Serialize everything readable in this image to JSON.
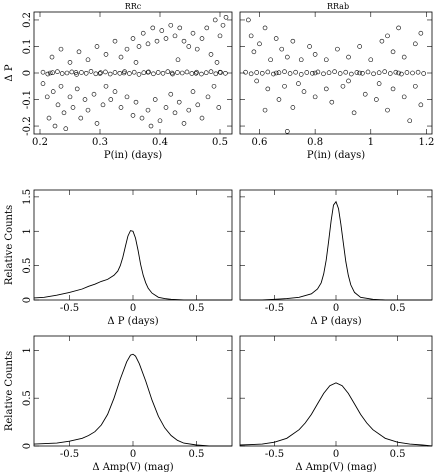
{
  "figure": {
    "panel_titles": [
      "RRc",
      "RRab"
    ]
  },
  "chart_data": [
    {
      "id": "rrc-scatter",
      "type": "scatter",
      "title": "RRc",
      "xlabel": "P(in)  (days)",
      "ylabel": "Δ P",
      "xlim": [
        0.19,
        0.52
      ],
      "ylim": [
        -0.23,
        0.23
      ],
      "xticks": [
        0.2,
        0.3,
        0.4,
        0.5
      ],
      "yticks": [
        -0.2,
        -0.1,
        0,
        0.1,
        0.2
      ],
      "grid": false,
      "points": [
        [
          0.205,
          0.003
        ],
        [
          0.213,
          -0.004
        ],
        [
          0.221,
          0.001
        ],
        [
          0.229,
          0.005
        ],
        [
          0.237,
          -0.002
        ],
        [
          0.245,
          0.0
        ],
        [
          0.253,
          0.004
        ],
        [
          0.261,
          -0.005
        ],
        [
          0.269,
          0.002
        ],
        [
          0.277,
          -0.001
        ],
        [
          0.285,
          0.006
        ],
        [
          0.293,
          -0.003
        ],
        [
          0.301,
          0.001
        ],
        [
          0.309,
          0.004
        ],
        [
          0.317,
          -0.004
        ],
        [
          0.325,
          0.002
        ],
        [
          0.333,
          -0.001
        ],
        [
          0.341,
          0.005
        ],
        [
          0.349,
          -0.002
        ],
        [
          0.357,
          0.003
        ],
        [
          0.365,
          -0.005
        ],
        [
          0.373,
          0.001
        ],
        [
          0.381,
          0.004
        ],
        [
          0.389,
          -0.003
        ],
        [
          0.397,
          0.002
        ],
        [
          0.405,
          -0.001
        ],
        [
          0.413,
          0.005
        ],
        [
          0.421,
          -0.004
        ],
        [
          0.429,
          0.002
        ],
        [
          0.437,
          0.0
        ],
        [
          0.445,
          0.004
        ],
        [
          0.453,
          -0.002
        ],
        [
          0.461,
          0.003
        ],
        [
          0.469,
          -0.004
        ],
        [
          0.477,
          0.001
        ],
        [
          0.485,
          0.005
        ],
        [
          0.493,
          -0.003
        ],
        [
          0.501,
          0.002
        ],
        [
          0.509,
          -0.001
        ],
        [
          0.217,
          0.0
        ],
        [
          0.26,
          0.002
        ],
        [
          0.3,
          -0.002
        ],
        [
          0.34,
          0.0
        ],
        [
          0.38,
          0.003
        ],
        [
          0.42,
          0.0
        ],
        [
          0.46,
          -0.001
        ],
        [
          0.5,
          0.003
        ],
        [
          0.205,
          -0.04
        ],
        [
          0.212,
          -0.09
        ],
        [
          0.215,
          -0.17
        ],
        [
          0.222,
          -0.07
        ],
        [
          0.225,
          -0.2
        ],
        [
          0.23,
          -0.12
        ],
        [
          0.235,
          -0.05
        ],
        [
          0.24,
          -0.15
        ],
        [
          0.243,
          -0.21
        ],
        [
          0.25,
          -0.09
        ],
        [
          0.255,
          -0.13
        ],
        [
          0.262,
          -0.06
        ],
        [
          0.268,
          -0.17
        ],
        [
          0.275,
          -0.1
        ],
        [
          0.28,
          -0.14
        ],
        [
          0.29,
          -0.08
        ],
        [
          0.295,
          -0.19
        ],
        [
          0.305,
          -0.12
        ],
        [
          0.31,
          -0.05
        ],
        [
          0.318,
          -0.1
        ],
        [
          0.325,
          -0.07
        ],
        [
          0.335,
          -0.13
        ],
        [
          0.345,
          -0.09
        ],
        [
          0.355,
          -0.16
        ],
        [
          0.36,
          -0.11
        ],
        [
          0.37,
          -0.17
        ],
        [
          0.38,
          -0.14
        ],
        [
          0.385,
          -0.2
        ],
        [
          0.392,
          -0.1
        ],
        [
          0.4,
          -0.18
        ],
        [
          0.41,
          -0.13
        ],
        [
          0.418,
          -0.08
        ],
        [
          0.425,
          -0.15
        ],
        [
          0.432,
          -0.11
        ],
        [
          0.44,
          -0.19
        ],
        [
          0.448,
          -0.14
        ],
        [
          0.455,
          -0.07
        ],
        [
          0.463,
          -0.12
        ],
        [
          0.47,
          -0.17
        ],
        [
          0.48,
          -0.09
        ],
        [
          0.49,
          -0.05
        ],
        [
          0.498,
          -0.13
        ],
        [
          0.22,
          0.06
        ],
        [
          0.235,
          0.09
        ],
        [
          0.25,
          0.04
        ],
        [
          0.265,
          0.08
        ],
        [
          0.28,
          0.05
        ],
        [
          0.295,
          0.1
        ],
        [
          0.31,
          0.07
        ],
        [
          0.325,
          0.12
        ],
        [
          0.335,
          0.06
        ],
        [
          0.345,
          0.09
        ],
        [
          0.355,
          0.13
        ],
        [
          0.365,
          0.1
        ],
        [
          0.372,
          0.15
        ],
        [
          0.38,
          0.11
        ],
        [
          0.388,
          0.17
        ],
        [
          0.395,
          0.12
        ],
        [
          0.403,
          0.16
        ],
        [
          0.41,
          0.13
        ],
        [
          0.418,
          0.18
        ],
        [
          0.425,
          0.14
        ],
        [
          0.433,
          0.17
        ],
        [
          0.44,
          0.12
        ],
        [
          0.448,
          0.1
        ],
        [
          0.455,
          0.15
        ],
        [
          0.462,
          0.09
        ],
        [
          0.47,
          0.13
        ],
        [
          0.478,
          0.17
        ],
        [
          0.485,
          0.07
        ],
        [
          0.492,
          0.2
        ],
        [
          0.5,
          0.14
        ],
        [
          0.505,
          0.18
        ],
        [
          0.51,
          0.21
        ],
        [
          0.495,
          0.04
        ],
        [
          0.43,
          0.05
        ],
        [
          0.36,
          0.04
        ]
      ]
    },
    {
      "id": "rrab-scatter",
      "type": "scatter",
      "title": "RRab",
      "xlabel": "P(in)  (days)",
      "ylabel": "",
      "xlim": [
        0.53,
        1.22
      ],
      "ylim": [
        -0.23,
        0.23
      ],
      "xticks": [
        0.6,
        0.8,
        1.0,
        1.2
      ],
      "xticklabels": [
        "0.6",
        "0.8",
        "1",
        "1.2"
      ],
      "grid": false,
      "points": [
        [
          0.55,
          0.003
        ],
        [
          0.57,
          -0.003
        ],
        [
          0.59,
          0.002
        ],
        [
          0.61,
          -0.001
        ],
        [
          0.63,
          0.004
        ],
        [
          0.65,
          -0.004
        ],
        [
          0.67,
          0.001
        ],
        [
          0.69,
          0.005
        ],
        [
          0.71,
          -0.002
        ],
        [
          0.73,
          0.003
        ],
        [
          0.75,
          -0.005
        ],
        [
          0.77,
          0.002
        ],
        [
          0.79,
          -0.001
        ],
        [
          0.81,
          0.004
        ],
        [
          0.83,
          -0.003
        ],
        [
          0.85,
          0.001
        ],
        [
          0.87,
          0.005
        ],
        [
          0.89,
          -0.002
        ],
        [
          0.91,
          0.003
        ],
        [
          0.93,
          -0.004
        ],
        [
          0.95,
          0.002
        ],
        [
          0.97,
          -0.001
        ],
        [
          0.99,
          0.004
        ],
        [
          1.01,
          -0.003
        ],
        [
          1.03,
          0.001
        ],
        [
          1.05,
          0.005
        ],
        [
          1.07,
          -0.002
        ],
        [
          1.09,
          0.003
        ],
        [
          1.11,
          -0.004
        ],
        [
          1.13,
          0.002
        ],
        [
          1.15,
          0.0
        ],
        [
          1.17,
          0.003
        ],
        [
          1.19,
          -0.002
        ],
        [
          0.66,
          0.0
        ],
        [
          0.8,
          0.0
        ],
        [
          0.96,
          0.0
        ],
        [
          1.1,
          0.0
        ],
        [
          0.56,
          0.2
        ],
        [
          0.57,
          0.14
        ],
        [
          0.58,
          0.08
        ],
        [
          0.6,
          0.11
        ],
        [
          0.62,
          0.17
        ],
        [
          0.64,
          0.05
        ],
        [
          0.66,
          0.13
        ],
        [
          0.68,
          0.09
        ],
        [
          0.7,
          0.06
        ],
        [
          0.72,
          0.12
        ],
        [
          0.75,
          0.05
        ],
        [
          0.78,
          0.1
        ],
        [
          0.8,
          0.07
        ],
        [
          0.84,
          0.05
        ],
        [
          0.88,
          0.09
        ],
        [
          0.92,
          0.06
        ],
        [
          0.96,
          0.1
        ],
        [
          1.0,
          0.05
        ],
        [
          1.04,
          0.12
        ],
        [
          1.08,
          0.08
        ],
        [
          1.12,
          0.06
        ],
        [
          1.16,
          0.11
        ],
        [
          1.18,
          0.15
        ],
        [
          1.1,
          0.17
        ],
        [
          1.06,
          0.14
        ],
        [
          0.59,
          -0.03
        ],
        [
          0.63,
          -0.06
        ],
        [
          0.67,
          -0.1
        ],
        [
          0.69,
          -0.05
        ],
        [
          0.7,
          -0.22
        ],
        [
          0.72,
          -0.13
        ],
        [
          0.74,
          -0.04
        ],
        [
          0.76,
          -0.07
        ],
        [
          0.8,
          -0.09
        ],
        [
          0.84,
          -0.06
        ],
        [
          0.86,
          -0.11
        ],
        [
          0.9,
          -0.05
        ],
        [
          0.94,
          -0.15
        ],
        [
          0.98,
          -0.08
        ],
        [
          1.02,
          -0.1
        ],
        [
          1.06,
          -0.14
        ],
        [
          1.08,
          -0.06
        ],
        [
          1.12,
          -0.09
        ],
        [
          1.16,
          -0.05
        ],
        [
          1.18,
          -0.12
        ],
        [
          1.14,
          -0.18
        ],
        [
          1.03,
          -0.04
        ],
        [
          0.62,
          -0.14
        ],
        [
          0.92,
          -0.03
        ]
      ]
    },
    {
      "id": "rrc-dp-hist",
      "type": "line",
      "title": "",
      "xlabel": "Δ P  (days)",
      "ylabel": "Relative Counts",
      "xlim": [
        -0.78,
        0.78
      ],
      "ylim": [
        0,
        1.6
      ],
      "xticks": [
        -0.5,
        0,
        0.5
      ],
      "yticks": [
        0,
        0.5,
        1,
        1.5
      ],
      "grid": false,
      "x": [
        -0.78,
        -0.7,
        -0.6,
        -0.5,
        -0.4,
        -0.35,
        -0.3,
        -0.25,
        -0.2,
        -0.15,
        -0.12,
        -0.1,
        -0.08,
        -0.06,
        -0.04,
        -0.02,
        0.0,
        0.02,
        0.04,
        0.06,
        0.08,
        0.1,
        0.12,
        0.15,
        0.2,
        0.25,
        0.3,
        0.4,
        0.5,
        0.6,
        0.7,
        0.78
      ],
      "y": [
        0.03,
        0.04,
        0.07,
        0.11,
        0.16,
        0.2,
        0.23,
        0.27,
        0.3,
        0.36,
        0.42,
        0.5,
        0.62,
        0.78,
        0.93,
        1.01,
        1.0,
        0.9,
        0.72,
        0.52,
        0.36,
        0.25,
        0.17,
        0.1,
        0.04,
        0.02,
        0.01,
        0.0,
        0.0,
        0.0,
        0.0,
        0.0
      ]
    },
    {
      "id": "rrab-dp-hist",
      "type": "line",
      "title": "",
      "xlabel": "Δ P  (days)",
      "ylabel": "",
      "xlim": [
        -0.78,
        0.78
      ],
      "ylim": [
        0,
        1.6
      ],
      "xticks": [
        -0.5,
        0,
        0.5
      ],
      "grid": false,
      "x": [
        -0.78,
        -0.6,
        -0.5,
        -0.4,
        -0.3,
        -0.2,
        -0.15,
        -0.12,
        -0.1,
        -0.08,
        -0.06,
        -0.04,
        -0.02,
        0.0,
        0.02,
        0.04,
        0.06,
        0.08,
        0.1,
        0.12,
        0.15,
        0.2,
        0.3,
        0.4,
        0.5,
        0.6,
        0.78
      ],
      "y": [
        0.0,
        0.0,
        0.01,
        0.02,
        0.04,
        0.09,
        0.16,
        0.25,
        0.38,
        0.58,
        0.85,
        1.15,
        1.38,
        1.43,
        1.33,
        1.1,
        0.82,
        0.56,
        0.36,
        0.22,
        0.11,
        0.04,
        0.01,
        0.0,
        0.0,
        0.0,
        0.0
      ]
    },
    {
      "id": "rrc-damp-hist",
      "type": "line",
      "title": "",
      "xlabel": "Δ Amp(V)  (mag)",
      "ylabel": "Relative Counts",
      "xlim": [
        -0.78,
        0.78
      ],
      "ylim": [
        0,
        1.15
      ],
      "xticks": [
        -0.5,
        0,
        0.5
      ],
      "yticks": [
        0,
        0.5,
        1
      ],
      "grid": false,
      "x": [
        -0.78,
        -0.6,
        -0.5,
        -0.4,
        -0.35,
        -0.3,
        -0.25,
        -0.2,
        -0.15,
        -0.1,
        -0.05,
        -0.02,
        0.0,
        0.02,
        0.05,
        0.1,
        0.15,
        0.2,
        0.25,
        0.3,
        0.35,
        0.4,
        0.5,
        0.6,
        0.7,
        0.78
      ],
      "y": [
        0.02,
        0.03,
        0.05,
        0.08,
        0.11,
        0.15,
        0.22,
        0.33,
        0.5,
        0.7,
        0.88,
        0.95,
        0.96,
        0.94,
        0.86,
        0.68,
        0.48,
        0.31,
        0.19,
        0.11,
        0.06,
        0.03,
        0.01,
        0.0,
        0.0,
        0.0
      ]
    },
    {
      "id": "rrab-damp-hist",
      "type": "line",
      "title": "",
      "xlabel": "Δ Amp(V)  (mag)",
      "ylabel": "",
      "xlim": [
        -0.78,
        0.78
      ],
      "ylim": [
        0,
        1.15
      ],
      "xticks": [
        -0.5,
        0,
        0.5
      ],
      "grid": false,
      "x": [
        -0.78,
        -0.6,
        -0.5,
        -0.4,
        -0.3,
        -0.25,
        -0.2,
        -0.15,
        -0.1,
        -0.05,
        0.0,
        0.05,
        0.1,
        0.15,
        0.2,
        0.25,
        0.3,
        0.4,
        0.5,
        0.6,
        0.7,
        0.78
      ],
      "y": [
        0.01,
        0.02,
        0.04,
        0.08,
        0.17,
        0.24,
        0.33,
        0.44,
        0.55,
        0.63,
        0.66,
        0.63,
        0.55,
        0.44,
        0.33,
        0.24,
        0.17,
        0.08,
        0.04,
        0.02,
        0.01,
        0.0
      ]
    }
  ]
}
